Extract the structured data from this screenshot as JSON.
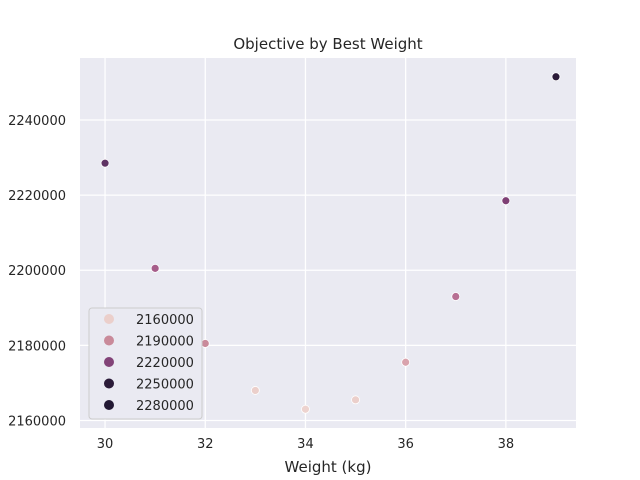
{
  "chart_data": {
    "type": "scatter",
    "title": "Objective by Best Weight",
    "xlabel": "Weight (kg)",
    "ylabel": "",
    "xlim": [
      29.5,
      39.4
    ],
    "ylim": [
      2158000,
      2256500
    ],
    "xticks": [
      30,
      32,
      34,
      36,
      38
    ],
    "yticks": [
      2160000,
      2180000,
      2200000,
      2220000,
      2240000
    ],
    "grid": true,
    "background": "#EAEAF2",
    "points": [
      {
        "x": 30,
        "y": 2228500,
        "color": "#5F3364"
      },
      {
        "x": 31,
        "y": 2200500,
        "color": "#A65D8A"
      },
      {
        "x": 32,
        "y": 2180500,
        "color": "#C98A9A"
      },
      {
        "x": 33,
        "y": 2168000,
        "color": "#EBCFCB"
      },
      {
        "x": 34,
        "y": 2163000,
        "color": "#EDD3CF"
      },
      {
        "x": 35,
        "y": 2165500,
        "color": "#EBCFCB"
      },
      {
        "x": 36,
        "y": 2175500,
        "color": "#D9A3AD"
      },
      {
        "x": 37,
        "y": 2193000,
        "color": "#B76F93"
      },
      {
        "x": 38,
        "y": 2218500,
        "color": "#7E3F74"
      },
      {
        "x": 39,
        "y": 2251500,
        "color": "#2B1B39"
      }
    ],
    "legend": {
      "position": "lower-left",
      "entries": [
        {
          "label": "2160000",
          "color": "#EBCFCB"
        },
        {
          "label": "2190000",
          "color": "#C98A9A"
        },
        {
          "label": "2220000",
          "color": "#824378"
        },
        {
          "label": "2250000",
          "color": "#2B1B39"
        },
        {
          "label": "2280000",
          "color": "#221833"
        }
      ]
    }
  }
}
